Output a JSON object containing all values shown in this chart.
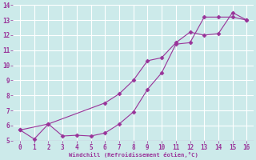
{
  "xlabel": "Windchill (Refroidissement éolien,°C)",
  "line1_x": [
    0,
    1,
    2,
    3,
    4,
    5,
    6,
    7,
    8,
    9,
    10,
    11,
    12,
    13,
    14,
    15,
    16
  ],
  "line1_y": [
    5.7,
    5.1,
    6.1,
    5.3,
    5.35,
    5.3,
    5.5,
    6.1,
    6.9,
    8.4,
    9.5,
    11.4,
    11.5,
    13.2,
    13.2,
    13.2,
    13.0
  ],
  "line2_x": [
    0,
    2,
    6,
    7,
    8,
    9,
    10,
    11,
    12,
    13,
    14,
    15,
    16
  ],
  "line2_y": [
    5.7,
    6.1,
    7.5,
    8.1,
    9.0,
    10.3,
    10.5,
    11.5,
    12.2,
    12.0,
    12.1,
    13.5,
    13.0
  ],
  "line_color": "#993399",
  "bg_color": "#cceaea",
  "grid_color": "#b8d8d8",
  "xlim": [
    -0.5,
    16.5
  ],
  "ylim": [
    5,
    14
  ],
  "xticks": [
    0,
    1,
    2,
    3,
    4,
    5,
    6,
    7,
    8,
    9,
    10,
    11,
    12,
    13,
    14,
    15,
    16
  ],
  "yticks": [
    5,
    6,
    7,
    8,
    9,
    10,
    11,
    12,
    13,
    14
  ],
  "markersize": 2.5
}
